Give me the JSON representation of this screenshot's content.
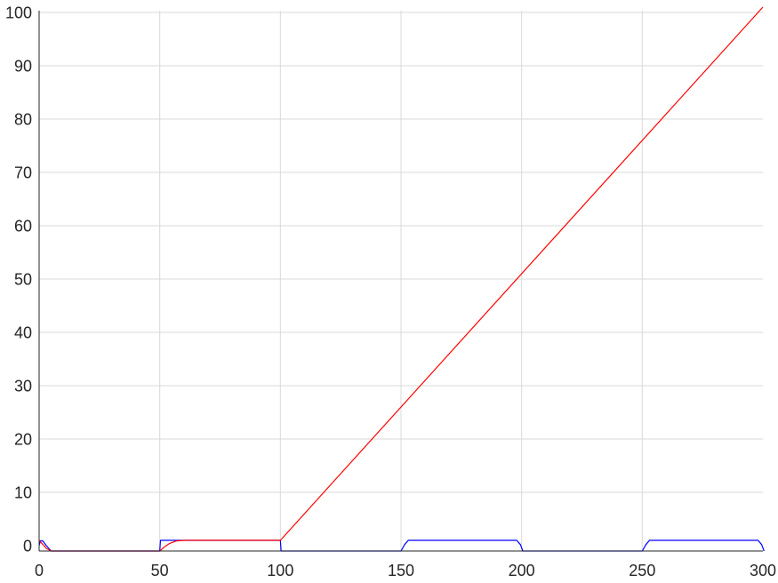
{
  "chart_data": {
    "type": "line",
    "title": "",
    "xlabel": "",
    "ylabel": "",
    "xlim": [
      0,
      300
    ],
    "ylim": [
      -1,
      100
    ],
    "grid": true,
    "x_ticks": [
      0,
      50,
      100,
      150,
      200,
      250,
      300
    ],
    "y_ticks": [
      0,
      10,
      20,
      30,
      40,
      50,
      60,
      70,
      80,
      90,
      100
    ],
    "series": [
      {
        "color": "#0000ff",
        "points": [
          [
            0,
            0
          ],
          [
            0.5,
            0.9
          ],
          [
            1.5,
            0.9
          ],
          [
            3,
            0
          ],
          [
            5,
            -1
          ],
          [
            50,
            -1
          ],
          [
            50.3,
            1
          ],
          [
            100,
            1
          ],
          [
            100.3,
            -1
          ],
          [
            150,
            -1
          ],
          [
            151.5,
            0.2
          ],
          [
            153,
            1
          ],
          [
            198,
            1
          ],
          [
            199.5,
            0.2
          ],
          [
            200.5,
            -1
          ],
          [
            250,
            -1
          ],
          [
            251.5,
            0.2
          ],
          [
            253,
            1
          ],
          [
            298,
            1
          ],
          [
            299.5,
            0.2
          ],
          [
            300.5,
            -1
          ]
        ]
      },
      {
        "color": "#ff0000",
        "points": [
          [
            0,
            1
          ],
          [
            1,
            0.5
          ],
          [
            3,
            -0.5
          ],
          [
            5,
            -1
          ],
          [
            50,
            -1
          ],
          [
            52,
            -0.2
          ],
          [
            54,
            0.4
          ],
          [
            57,
            0.9
          ],
          [
            60,
            1
          ],
          [
            100,
            1
          ],
          [
            300,
            101
          ]
        ]
      }
    ]
  }
}
